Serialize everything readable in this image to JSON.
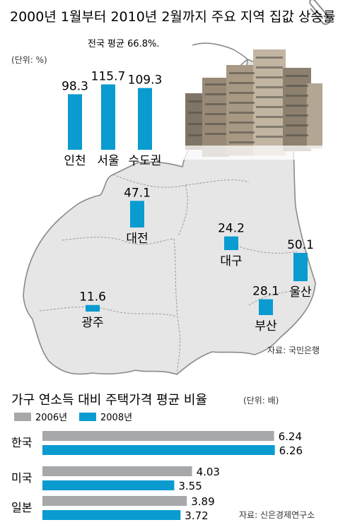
{
  "chart_data": [
    {
      "type": "bar",
      "title": "2000년 1월부터 2010년 2월까지 주요 지역 집값 상승률",
      "subtitle": "전국 평균 66.8%.",
      "unit": "(단위: %)",
      "source": "자료: 국민은행",
      "categories": [
        "인천",
        "서울",
        "수도권",
        "대전",
        "대구",
        "울산",
        "광주",
        "부산"
      ],
      "values": [
        98.3,
        115.7,
        109.3,
        47.1,
        24.2,
        50.1,
        11.6,
        28.1
      ],
      "value_labels": [
        "98.3",
        "115.7",
        "109.3",
        "47.1",
        "24.2",
        "50.1",
        "11.6",
        "28.1"
      ],
      "bar_color": "#0a9bd0"
    },
    {
      "type": "bar",
      "orientation": "horizontal",
      "title": "가구 연소득 대비 주택가격 평균 비율",
      "unit": "(단위: 배)",
      "source": "자료: 신은경제연구소",
      "categories": [
        "한국",
        "미국",
        "일본"
      ],
      "series": [
        {
          "name": "2006년",
          "values": [
            6.24,
            4.03,
            3.89
          ],
          "value_labels": [
            "6.24",
            "4.03",
            "3.89"
          ],
          "color": "#a7a8aa"
        },
        {
          "name": "2008년",
          "values": [
            6.26,
            3.55,
            3.72
          ],
          "value_labels": [
            "6.26",
            "3.55",
            "3.72"
          ],
          "color": "#0a9bd0"
        }
      ],
      "xlim": [
        0,
        6.5
      ]
    }
  ],
  "colors": {
    "accent": "#0a9bd0",
    "map_fill": "#e6e6e6",
    "map_border": "#8a8a8a",
    "gray_bar": "#a7a8aa"
  }
}
